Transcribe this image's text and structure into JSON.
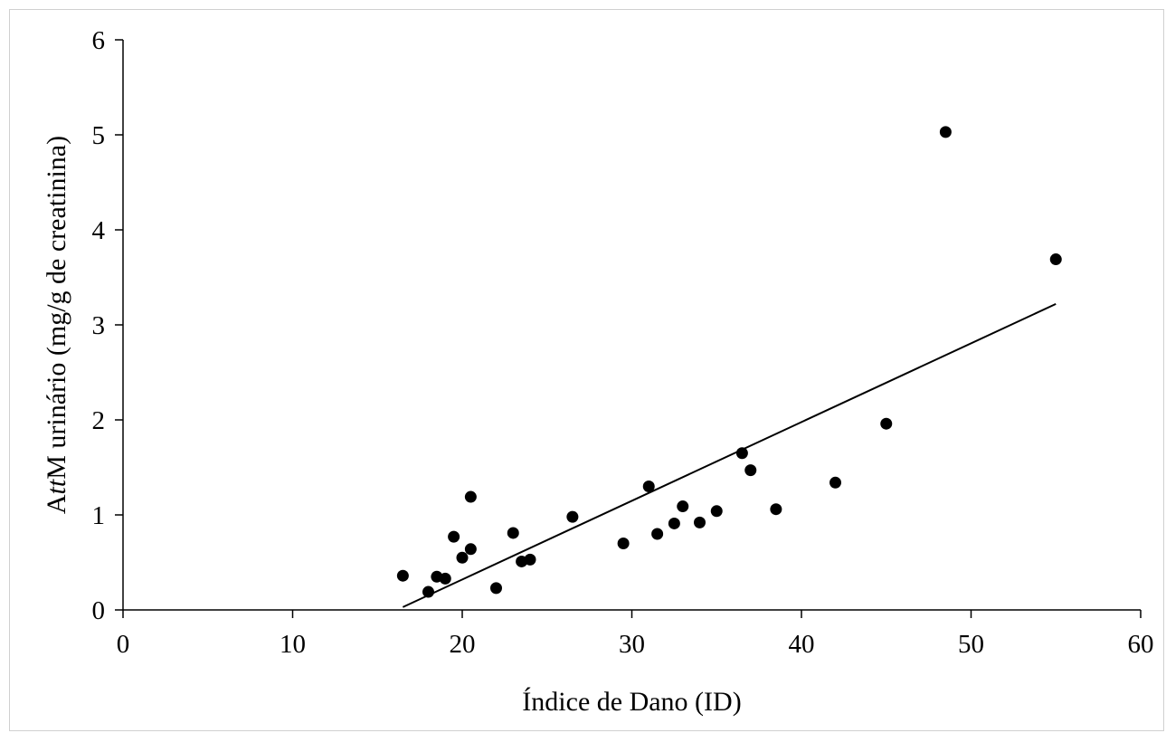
{
  "chart_data": {
    "type": "scatter",
    "xlabel": "Índice de Dano (ID)",
    "ylabel": {
      "prefix": "A",
      "italic": "tt",
      "suffix": "M urinário (mg/g de creatinina)"
    },
    "xlim": [
      0,
      60
    ],
    "ylim": [
      0,
      6
    ],
    "x_ticks": [
      "0",
      "10",
      "20",
      "30",
      "40",
      "50",
      "60"
    ],
    "y_ticks": [
      "0",
      "1",
      "2",
      "3",
      "4",
      "5",
      "6"
    ],
    "grid": false,
    "legend": "none",
    "points": [
      {
        "x": 16.5,
        "y": 0.36
      },
      {
        "x": 18.0,
        "y": 0.19
      },
      {
        "x": 18.5,
        "y": 0.35
      },
      {
        "x": 19.0,
        "y": 0.33
      },
      {
        "x": 19.5,
        "y": 0.77
      },
      {
        "x": 20.0,
        "y": 0.55
      },
      {
        "x": 20.5,
        "y": 0.64
      },
      {
        "x": 20.5,
        "y": 1.19
      },
      {
        "x": 22.0,
        "y": 0.23
      },
      {
        "x": 23.0,
        "y": 0.81
      },
      {
        "x": 23.5,
        "y": 0.51
      },
      {
        "x": 24.0,
        "y": 0.53
      },
      {
        "x": 26.5,
        "y": 0.98
      },
      {
        "x": 29.5,
        "y": 0.7
      },
      {
        "x": 31.0,
        "y": 1.3
      },
      {
        "x": 31.5,
        "y": 0.8
      },
      {
        "x": 32.5,
        "y": 0.91
      },
      {
        "x": 33.0,
        "y": 1.09
      },
      {
        "x": 34.0,
        "y": 0.92
      },
      {
        "x": 35.0,
        "y": 1.04
      },
      {
        "x": 36.5,
        "y": 1.65
      },
      {
        "x": 37.0,
        "y": 1.47
      },
      {
        "x": 38.5,
        "y": 1.06
      },
      {
        "x": 42.0,
        "y": 1.34
      },
      {
        "x": 45.0,
        "y": 1.96
      },
      {
        "x": 48.5,
        "y": 5.03
      },
      {
        "x": 55.0,
        "y": 3.69
      }
    ],
    "trendline": {
      "x": [
        16.5,
        55.0
      ],
      "y": [
        0.03,
        3.22
      ]
    },
    "colors": {
      "points": "#000000",
      "line": "#000000",
      "axis": "#000000"
    }
  }
}
